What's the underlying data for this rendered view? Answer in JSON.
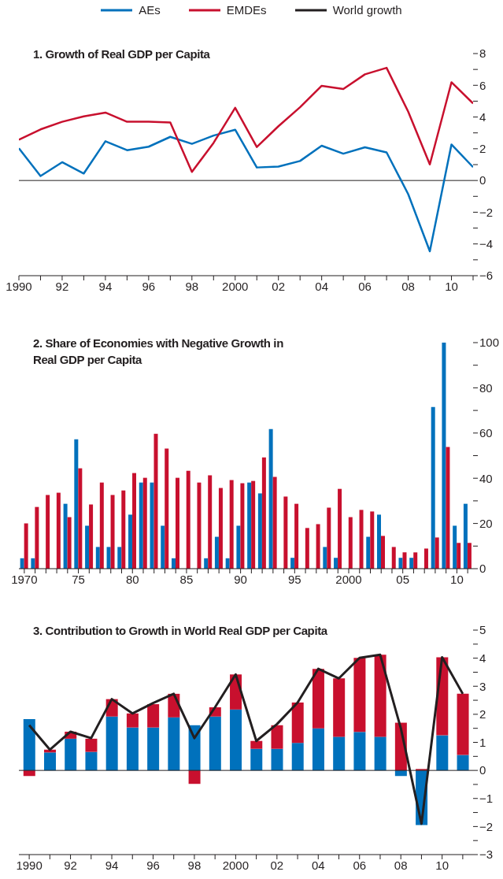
{
  "chart_data": [
    {
      "type": "line",
      "title": "1. Growth of Real GDP per Capita",
      "x": [
        1990,
        1991,
        1992,
        1993,
        1994,
        1995,
        1996,
        1997,
        1998,
        1999,
        2000,
        2001,
        2002,
        2003,
        2004,
        2005,
        2006,
        2007,
        2008,
        2009,
        2010,
        2011
      ],
      "series": [
        {
          "name": "AEs",
          "color": "#0071bc",
          "values": [
            2.03,
            0.28,
            1.15,
            0.44,
            2.47,
            1.91,
            2.13,
            2.75,
            2.31,
            2.83,
            3.2,
            0.82,
            0.88,
            1.23,
            2.19,
            1.69,
            2.09,
            1.77,
            -0.86,
            -4.46,
            2.27,
            0.84
          ]
        },
        {
          "name": "EMDEs",
          "color": "#c8102e",
          "values": [
            2.57,
            3.22,
            3.7,
            4.04,
            4.28,
            3.7,
            3.7,
            3.66,
            0.54,
            2.37,
            4.58,
            2.11,
            3.42,
            4.62,
            5.97,
            5.77,
            6.69,
            7.1,
            4.34,
            1.01,
            6.19,
            4.86
          ]
        }
      ],
      "xlim": [
        1990,
        2011
      ],
      "xticks": [
        1990,
        {
          "value": 1991,
          "label": null
        },
        {
          "value": 1992,
          "label": "92"
        },
        {
          "value": 1993,
          "label": null
        },
        {
          "value": 1994,
          "label": "94"
        },
        {
          "value": 1995,
          "label": null
        },
        {
          "value": 1996,
          "label": "96"
        },
        {
          "value": 1997,
          "label": null
        },
        {
          "value": 1998,
          "label": "98"
        },
        {
          "value": 1999,
          "label": null
        },
        2000,
        {
          "value": 2001,
          "label": null
        },
        {
          "value": 2002,
          "label": "02"
        },
        {
          "value": 2003,
          "label": null
        },
        {
          "value": 2004,
          "label": "04"
        },
        {
          "value": 2005,
          "label": null
        },
        {
          "value": 2006,
          "label": "06"
        },
        {
          "value": 2007,
          "label": null
        },
        {
          "value": 2008,
          "label": "08"
        },
        {
          "value": 2009,
          "label": null
        },
        {
          "value": 2010,
          "label": "10"
        },
        {
          "value": 2011,
          "label": null
        }
      ],
      "ylim": [
        -6,
        8
      ],
      "yticks": [
        {
          "value": -6,
          "label": "−6"
        },
        {
          "value": -5,
          "label": null
        },
        {
          "value": -4,
          "label": "−4"
        },
        {
          "value": -3,
          "label": null
        },
        {
          "value": -2,
          "label": "−2"
        },
        {
          "value": -1,
          "label": null
        },
        0,
        {
          "value": 1,
          "label": null
        },
        2,
        {
          "value": 3,
          "label": null
        },
        4,
        {
          "value": 5,
          "label": null
        },
        6,
        {
          "value": 7,
          "label": null
        },
        8
      ],
      "ref_lines": [
        {
          "axis": "y",
          "value": 0,
          "color": "#231f20"
        }
      ],
      "marker": "none",
      "line_style": "solid",
      "legend": "top"
    },
    {
      "type": "bar",
      "title": "2. Share of Economies with Negative Growth in Real GDP per Capita",
      "categories": [
        "1970",
        null,
        null,
        null,
        null,
        "75",
        null,
        null,
        null,
        null,
        "80",
        null,
        null,
        null,
        null,
        "85",
        null,
        null,
        null,
        null,
        "90",
        null,
        null,
        null,
        null,
        "95",
        null,
        null,
        null,
        null,
        "2000",
        null,
        null,
        null,
        null,
        "05",
        null,
        null,
        null,
        null,
        "10",
        null
      ],
      "series": [
        {
          "name": "AEs",
          "color": "#0071bc",
          "values": [
            4.6,
            4.6,
            0,
            0,
            28.7,
            57.2,
            19,
            9.6,
            9.6,
            9.6,
            23.9,
            38.1,
            38.1,
            19,
            4.6,
            0,
            0,
            4.6,
            14.1,
            4.6,
            19,
            38.1,
            33.3,
            61.8,
            0,
            4.8,
            0,
            0,
            9.6,
            4.8,
            0,
            0,
            14.1,
            23.9,
            0,
            4.8,
            4.8,
            0,
            71.5,
            100,
            19,
            28.7
          ]
        },
        {
          "name": "EMDEs",
          "color": "#c8102e",
          "values": [
            20,
            27.3,
            32.6,
            33.6,
            22.8,
            44.4,
            28.4,
            38.1,
            32.6,
            34.6,
            42.3,
            40.2,
            59.7,
            53.1,
            40.2,
            43.3,
            38.1,
            41.3,
            35.7,
            39.2,
            37.8,
            38.8,
            49.2,
            40.6,
            31.9,
            28.7,
            18,
            19.7,
            27,
            35.3,
            22.8,
            26,
            25.3,
            14.5,
            9.6,
            7.2,
            7.2,
            8.9,
            13.8,
            53.8,
            11.4,
            11.4
          ]
        }
      ],
      "ylim": [
        0,
        100
      ],
      "yticks": [
        0,
        {
          "value": 10,
          "label": null
        },
        20,
        {
          "value": 30,
          "label": null
        },
        40,
        {
          "value": 50,
          "label": null
        },
        60,
        {
          "value": 70,
          "label": null
        },
        80,
        {
          "value": 90,
          "label": null
        },
        100
      ],
      "legend": false
    },
    {
      "type": "bar",
      "title": "3. Contribution to Growth in World Real GDP per Capita",
      "categories": [
        "1990",
        null,
        "92",
        null,
        "94",
        null,
        "96",
        null,
        "98",
        null,
        "2000",
        null,
        "02",
        null,
        "04",
        null,
        "06",
        null,
        "08",
        null,
        "10",
        null
      ],
      "stacked": true,
      "series": [
        {
          "name": "AEs",
          "color": "#0071bc",
          "values": [
            1.83,
            0.64,
            1.13,
            0.66,
            1.92,
            1.53,
            1.53,
            1.89,
            1.61,
            1.92,
            2.17,
            0.77,
            0.77,
            0.98,
            1.5,
            1.2,
            1.37,
            1.2,
            -0.2,
            -1.95,
            1.25,
            0.55
          ]
        },
        {
          "name": "EMDEs",
          "color": "#c8102e",
          "values": [
            -0.2,
            0.1,
            0.25,
            0.47,
            0.62,
            0.5,
            0.83,
            0.84,
            -0.48,
            0.33,
            1.25,
            0.28,
            0.84,
            1.44,
            2.12,
            2.08,
            2.64,
            2.92,
            1.7,
            0.05,
            2.78,
            2.18
          ]
        },
        {
          "name": "World growth",
          "type": "line",
          "color": "#231f20",
          "values": [
            1.61,
            0.74,
            1.38,
            1.15,
            2.54,
            2.03,
            2.4,
            2.73,
            1.15,
            2.25,
            3.42,
            1.05,
            1.65,
            2.42,
            3.62,
            3.28,
            4.01,
            4.12,
            1.5,
            -1.9,
            4.03,
            2.73
          ]
        }
      ],
      "ylim": [
        -3,
        5
      ],
      "yticks": [
        {
          "value": -3,
          "label": "−3"
        },
        {
          "value": -2.5,
          "label": null
        },
        {
          "value": -2,
          "label": "−2"
        },
        {
          "value": -1.5,
          "label": null
        },
        {
          "value": -1,
          "label": "−1"
        },
        {
          "value": -0.5,
          "label": null
        },
        0,
        {
          "value": 0.5,
          "label": null
        },
        1,
        {
          "value": 1.5,
          "label": null
        },
        2,
        {
          "value": 2.5,
          "label": null
        },
        3,
        {
          "value": 3.5,
          "label": null
        },
        4,
        {
          "value": 4.5,
          "label": null
        },
        5
      ],
      "ref_lines": [
        {
          "axis": "y",
          "value": 0,
          "color": "#231f20"
        }
      ],
      "marker": "none",
      "line_style": "solid",
      "legend": "top"
    }
  ]
}
